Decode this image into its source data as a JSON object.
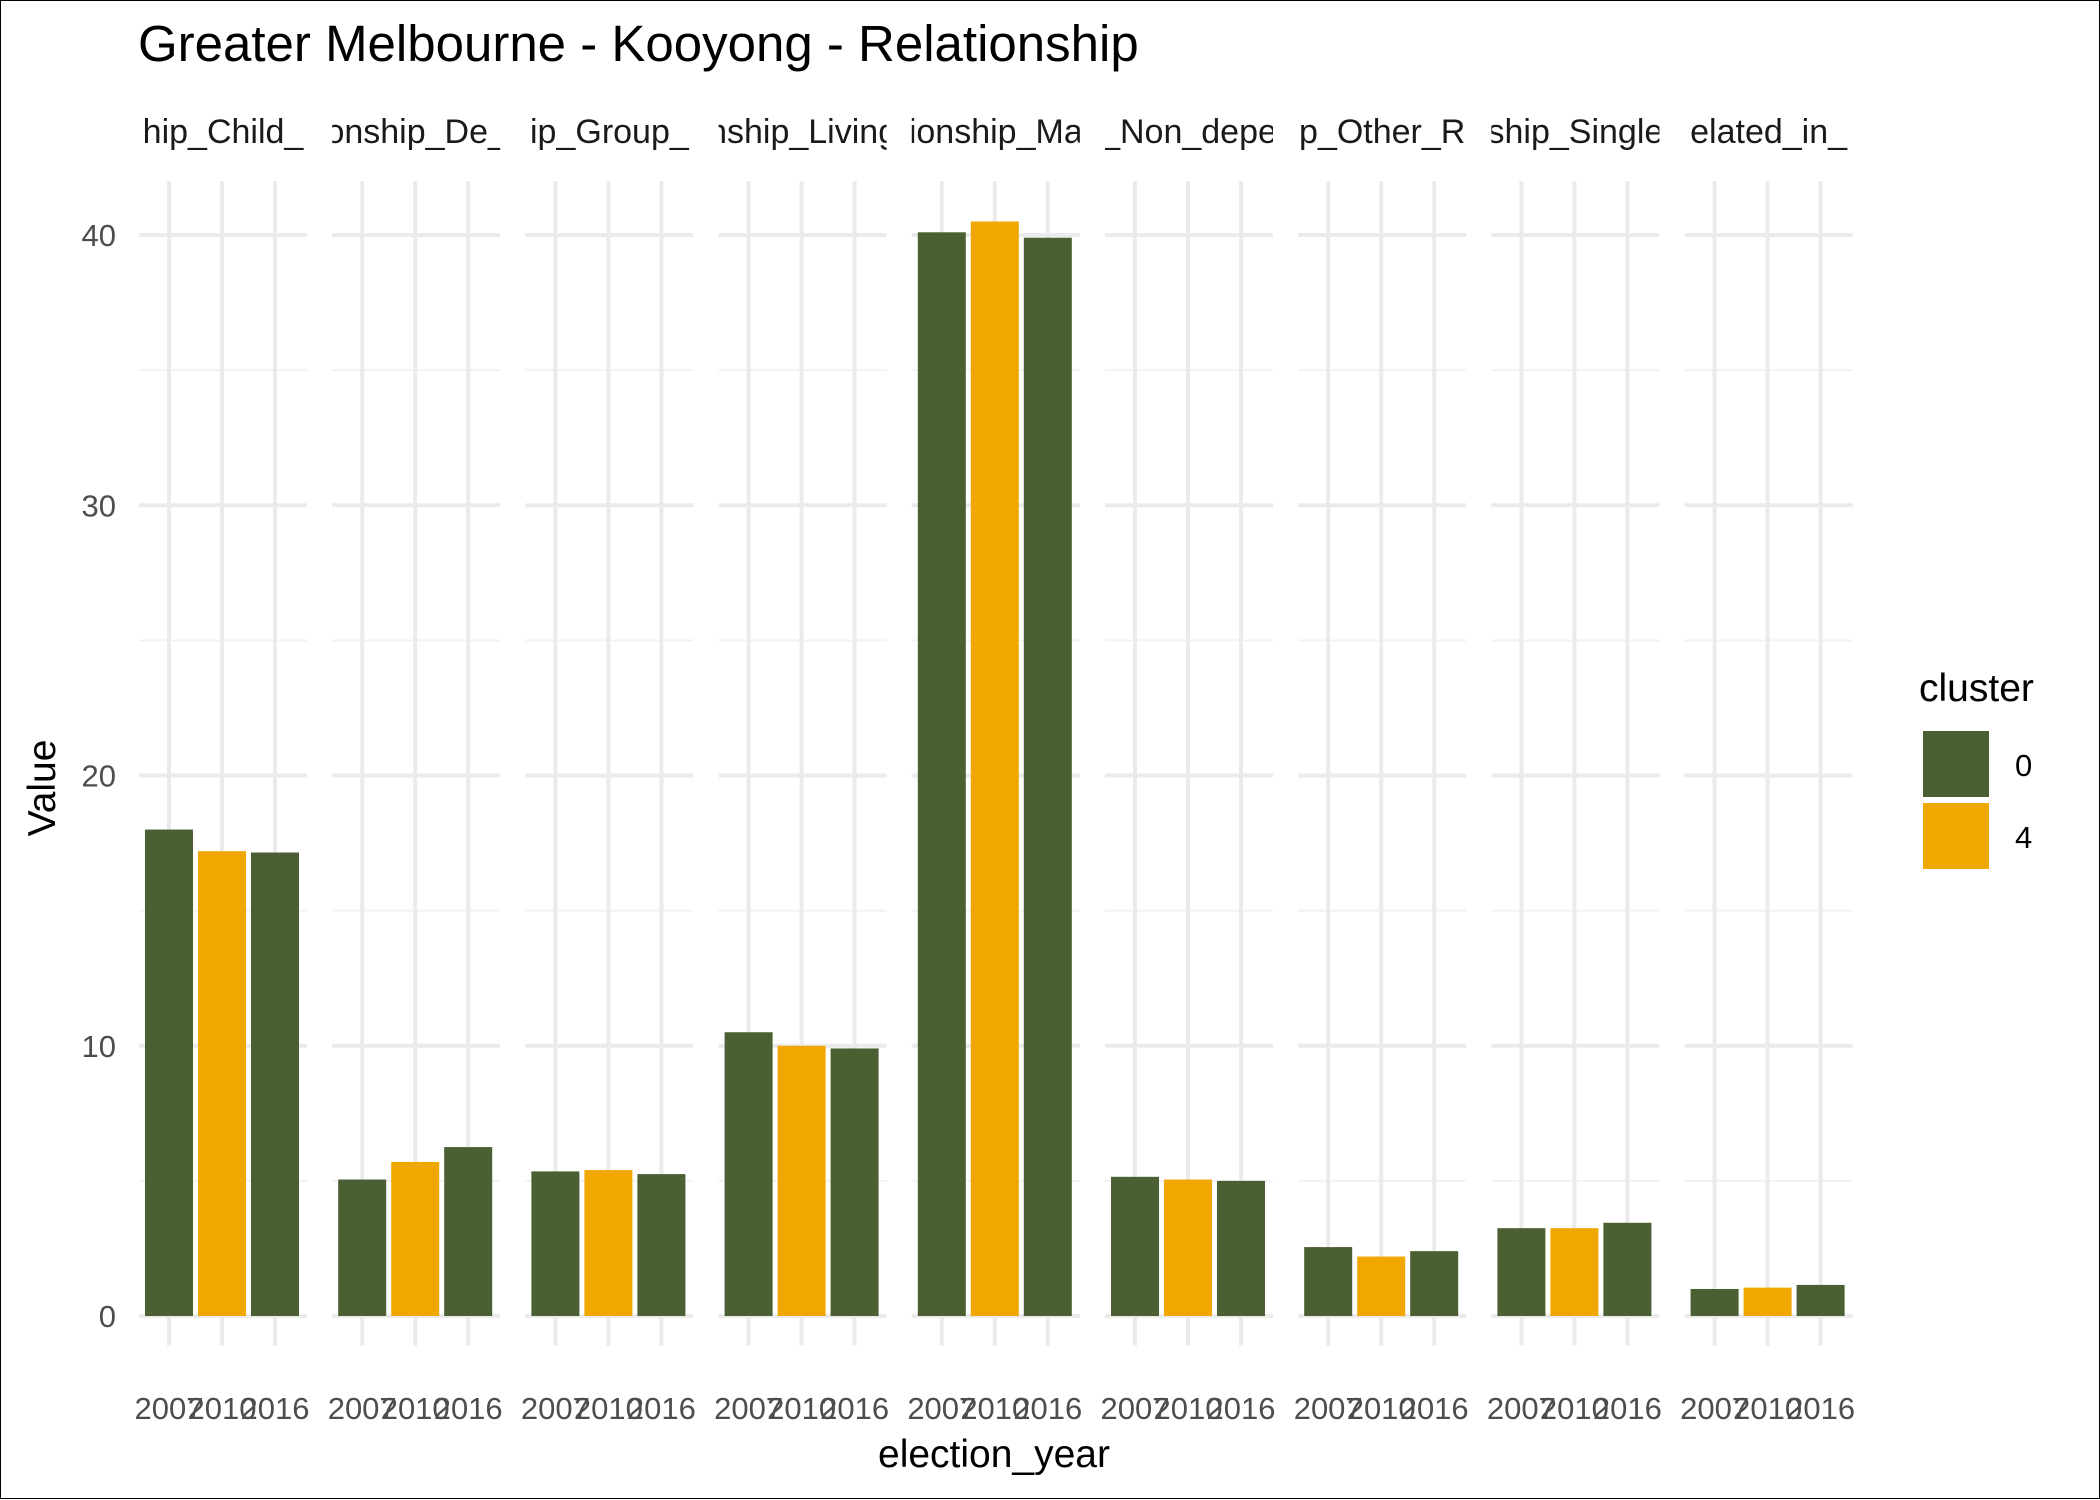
{
  "chart_data": {
    "type": "bar",
    "title": "Greater Melbourne - Kooyong - Relationship",
    "xlabel": "election_year",
    "ylabel": "Value",
    "ylim": [
      0,
      42
    ],
    "y_ticks": [
      0,
      10,
      20,
      30,
      40
    ],
    "x_tick_labels": [
      "2007",
      "2010",
      "2016"
    ],
    "facets": [
      "hip_Child_",
      "onship_De_",
      "ip_Group_",
      "nship_Living",
      "ionship_Ma",
      "_Non_depe",
      "p_Other_R",
      "ship_Single",
      "elated_in_"
    ],
    "series": [
      {
        "name": "Relationship_Child_",
        "values": [
          18.0,
          17.2,
          17.15
        ],
        "clusters": [
          "0",
          "4",
          "0"
        ]
      },
      {
        "name": "Relationship_De_",
        "values": [
          5.05,
          5.7,
          6.25
        ],
        "clusters": [
          "0",
          "4",
          "0"
        ]
      },
      {
        "name": "Relationship_Group_",
        "values": [
          5.35,
          5.4,
          5.25
        ],
        "clusters": [
          "0",
          "4",
          "0"
        ]
      },
      {
        "name": "Relationship_Living",
        "values": [
          10.5,
          10.0,
          9.9
        ],
        "clusters": [
          "0",
          "4",
          "0"
        ]
      },
      {
        "name": "Relationship_Ma",
        "values": [
          40.1,
          40.5,
          39.9
        ],
        "clusters": [
          "0",
          "4",
          "0"
        ]
      },
      {
        "name": "Relationship_Non_depe",
        "values": [
          5.15,
          5.05,
          5.0
        ],
        "clusters": [
          "0",
          "4",
          "0"
        ]
      },
      {
        "name": "Relationship_Other_R",
        "values": [
          2.55,
          2.2,
          2.4
        ],
        "clusters": [
          "0",
          "4",
          "0"
        ]
      },
      {
        "name": "Relationship_Single",
        "values": [
          3.25,
          3.25,
          3.45
        ],
        "clusters": [
          "0",
          "4",
          "0"
        ]
      },
      {
        "name": "Unrelated_in_",
        "values": [
          1.0,
          1.05,
          1.15
        ],
        "clusters": [
          "0",
          "4",
          "0"
        ]
      }
    ],
    "legend": {
      "title": "cluster",
      "placement": "right",
      "entries": [
        {
          "label": "0",
          "color": "#4a6032"
        },
        {
          "label": "4",
          "color": "#f0a800"
        }
      ]
    },
    "grid": true
  }
}
